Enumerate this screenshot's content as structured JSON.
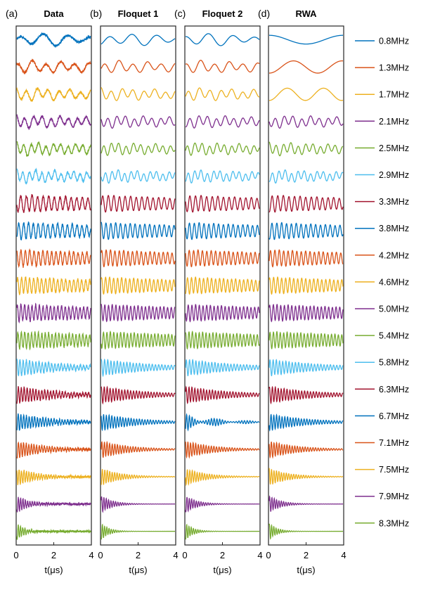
{
  "chart_data": {
    "type": "line",
    "xlabel": "t(μs)",
    "xlim": [
      0,
      4
    ],
    "xticks": [
      "0",
      "2",
      "4"
    ],
    "panels": [
      {
        "letter": "(a)",
        "title": "Data"
      },
      {
        "letter": "(b)",
        "title": "Floquet 1"
      },
      {
        "letter": "(c)",
        "title": "Floquet 2"
      },
      {
        "letter": "(d)",
        "title": "RWA"
      }
    ],
    "series": [
      {
        "name": "0.8MHz",
        "color": "#0072BD",
        "osc_MHz": 0.8
      },
      {
        "name": "1.3MHz",
        "color": "#D95319",
        "osc_MHz": 1.3
      },
      {
        "name": "1.7MHz",
        "color": "#EDB120",
        "osc_MHz": 1.7
      },
      {
        "name": "2.1MHz",
        "color": "#7E2F8E",
        "osc_MHz": 2.1
      },
      {
        "name": "2.5MHz",
        "color": "#77AC30",
        "osc_MHz": 2.5
      },
      {
        "name": "2.9MHz",
        "color": "#4DBEEE",
        "osc_MHz": 2.9
      },
      {
        "name": "3.3MHz",
        "color": "#A2142F",
        "osc_MHz": 3.3
      },
      {
        "name": "3.8MHz",
        "color": "#0072BD",
        "osc_MHz": 3.8
      },
      {
        "name": "4.2MHz",
        "color": "#D95319",
        "osc_MHz": 4.2
      },
      {
        "name": "4.6MHz",
        "color": "#EDB120",
        "osc_MHz": 4.6
      },
      {
        "name": "5.0MHz",
        "color": "#7E2F8E",
        "osc_MHz": 5.0
      },
      {
        "name": "5.4MHz",
        "color": "#77AC30",
        "osc_MHz": 5.4
      },
      {
        "name": "5.8MHz",
        "color": "#4DBEEE",
        "osc_MHz": 5.8
      },
      {
        "name": "6.3MHz",
        "color": "#A2142F",
        "osc_MHz": 6.3
      },
      {
        "name": "6.7MHz",
        "color": "#0072BD",
        "osc_MHz": 6.7
      },
      {
        "name": "7.1MHz",
        "color": "#D95319",
        "osc_MHz": 7.1
      },
      {
        "name": "7.5MHz",
        "color": "#EDB120",
        "osc_MHz": 7.5
      },
      {
        "name": "7.9MHz",
        "color": "#7E2F8E",
        "osc_MHz": 7.9
      },
      {
        "name": "8.3MHz",
        "color": "#77AC30",
        "osc_MHz": 8.3
      }
    ],
    "grid": false,
    "legend": "right"
  }
}
